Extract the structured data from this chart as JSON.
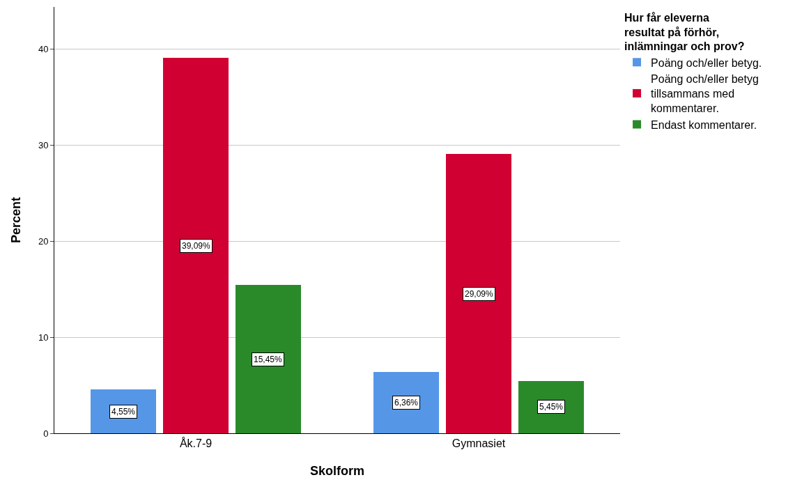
{
  "chart_data": {
    "type": "bar",
    "xlabel": "Skolform",
    "ylabel": "Percent",
    "legend_title": "Hur får eleverna resultat på förhör, inlämningar och prov?",
    "categories": [
      "Åk.7-9",
      "Gymnasiet"
    ],
    "series": [
      {
        "name": "Poäng och/eller betyg.",
        "color": "#5596e6",
        "values": [
          4.55,
          6.36
        ],
        "value_labels": [
          "4,55%",
          "6,36%"
        ]
      },
      {
        "name": "Poäng och/eller betyg tillsammans med kommentarer.",
        "color": "#d10032",
        "values": [
          39.09,
          29.09
        ],
        "value_labels": [
          "39,09%",
          "29,09%"
        ]
      },
      {
        "name": "Endast kommentarer.",
        "color": "#2a8a2a",
        "values": [
          15.45,
          5.45
        ],
        "value_labels": [
          "15,45%",
          "5,45%"
        ]
      }
    ],
    "ylim": [
      0,
      44.4
    ],
    "yticks": [
      0,
      10,
      20,
      30,
      40
    ],
    "grid": "y",
    "legend": "top right"
  }
}
